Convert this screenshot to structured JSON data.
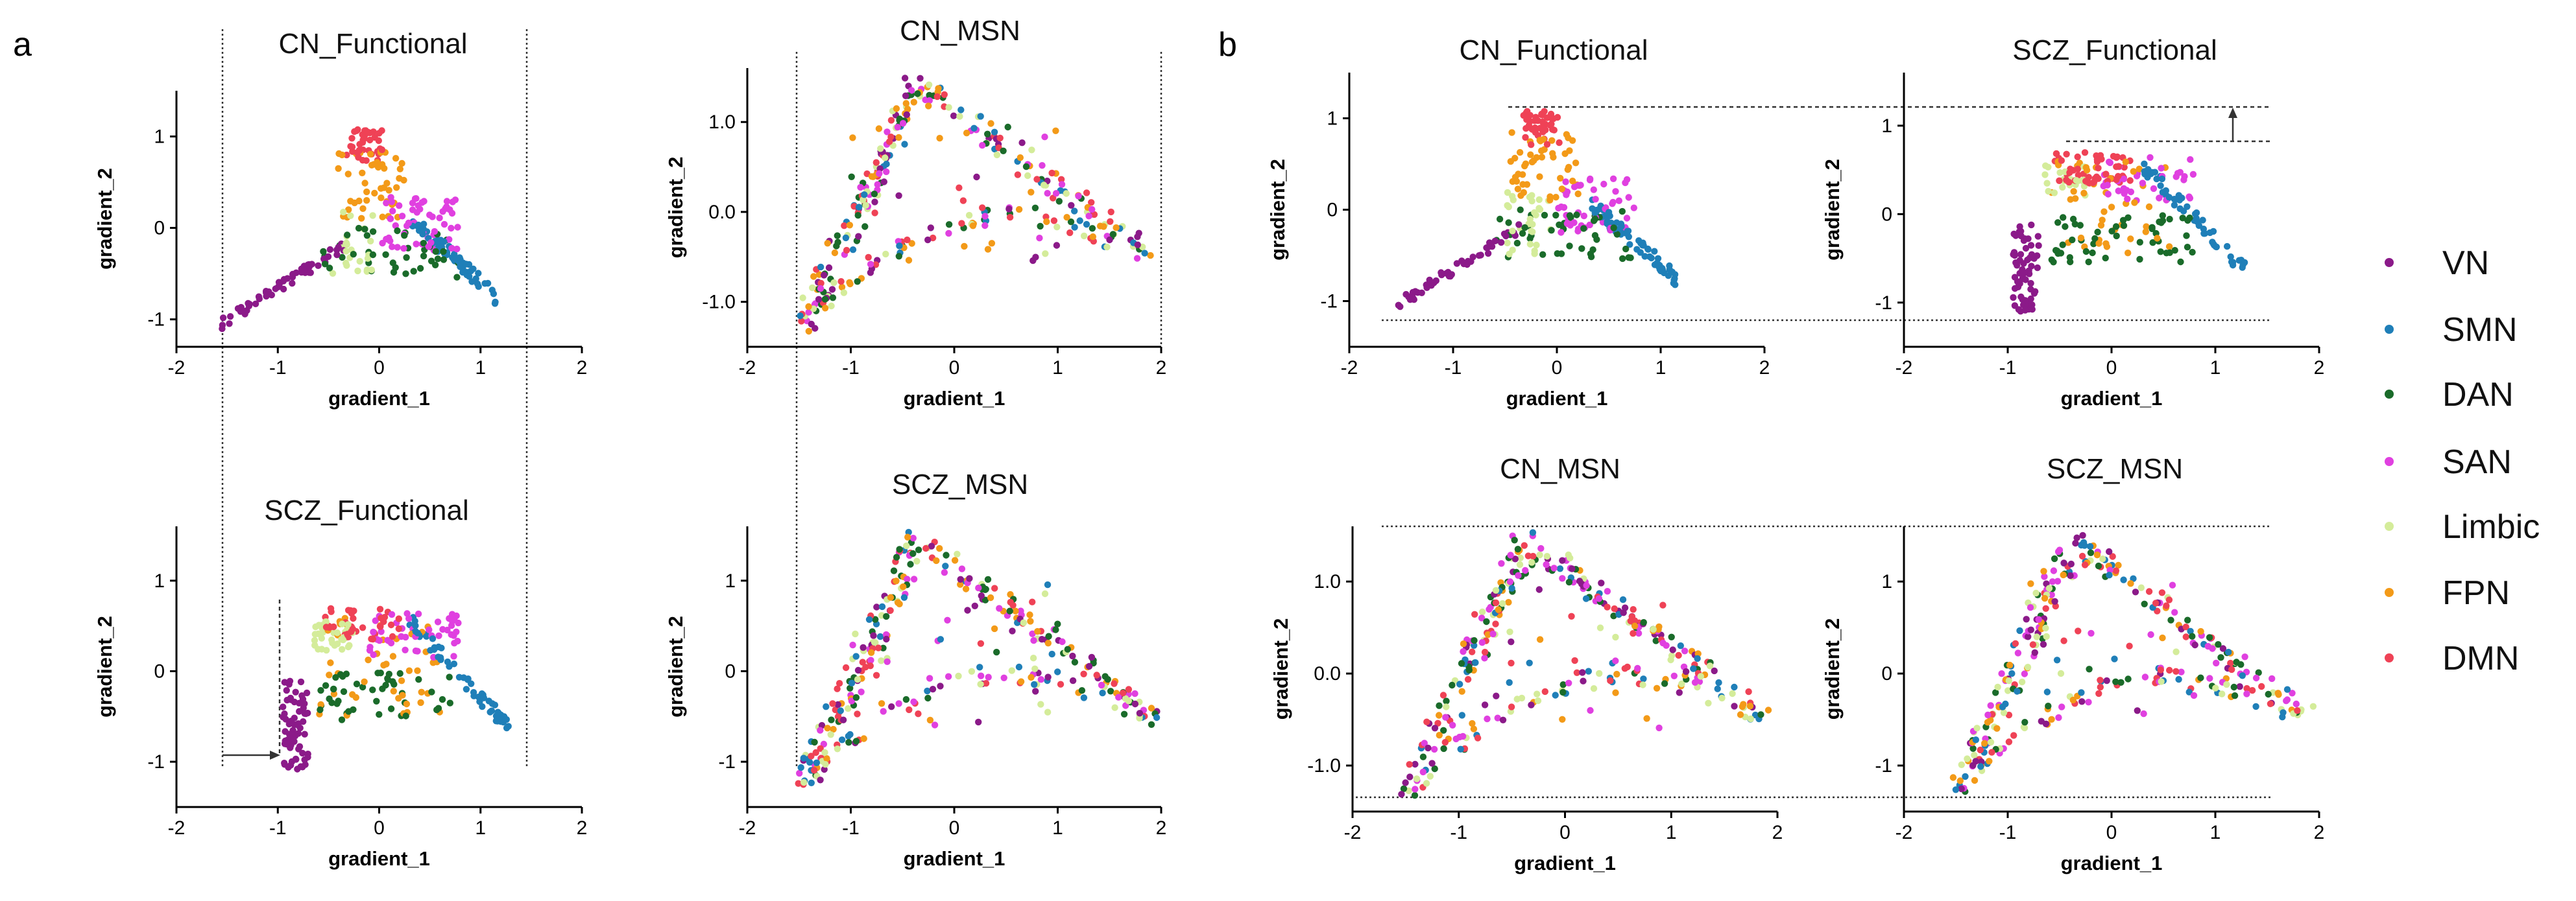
{
  "panel_labels": {
    "a": "a",
    "b": "b"
  },
  "legend": {
    "items": [
      {
        "label": "VN",
        "color": "#8B1A89"
      },
      {
        "label": "SMN",
        "color": "#1F7FB8"
      },
      {
        "label": "DAN",
        "color": "#1A6B2A"
      },
      {
        "label": "SAN",
        "color": "#E040E0"
      },
      {
        "label": "Limbic",
        "color": "#D4EC9A"
      },
      {
        "label": "FPN",
        "color": "#F39A18"
      },
      {
        "label": "DMN",
        "color": "#EF4256"
      }
    ]
  },
  "chart_data": [
    {
      "id": "a_cn_func",
      "type": "scatter",
      "title": "CN_Functional",
      "xlabel": "gradient_1",
      "ylabel": "gradient_2",
      "xlim": [
        -2,
        2
      ],
      "ylim": [
        -1.3,
        1.5
      ],
      "xticks": [
        "-2",
        "-1",
        "0",
        "1",
        "2"
      ],
      "yticks": [
        "-1",
        "0",
        "1"
      ],
      "shape": "func_cn",
      "seed": 11
    },
    {
      "id": "a_cn_msn",
      "type": "scatter",
      "title": "CN_MSN",
      "xlabel": "gradient_1",
      "ylabel": "gradient_2",
      "xlim": [
        -2,
        2
      ],
      "ylim": [
        -1.5,
        1.6
      ],
      "xticks": [
        "-2",
        "-1",
        "0",
        "1",
        "2"
      ],
      "yticks": [
        "-1.0",
        "0.0",
        "1.0"
      ],
      "shape": "msn",
      "seed": 23
    },
    {
      "id": "a_scz_func",
      "type": "scatter",
      "title": "SCZ_Functional",
      "xlabel": "gradient_1",
      "ylabel": "gradient_2",
      "xlim": [
        -2,
        2
      ],
      "ylim": [
        -1.5,
        1.6
      ],
      "xticks": [
        "-2",
        "-1",
        "0",
        "1",
        "2"
      ],
      "yticks": [
        "-1",
        "0",
        "1"
      ],
      "shape": "func_scz",
      "seed": 37
    },
    {
      "id": "a_scz_msn",
      "type": "scatter",
      "title": "SCZ_MSN",
      "xlabel": "gradient_1",
      "ylabel": "gradient_2",
      "xlim": [
        -2,
        2
      ],
      "ylim": [
        -1.5,
        1.6
      ],
      "xticks": [
        "-2",
        "-1",
        "0",
        "1",
        "2"
      ],
      "yticks": [
        "-1",
        "0",
        "1"
      ],
      "shape": "msn",
      "seed": 41
    },
    {
      "id": "b_cn_func",
      "type": "scatter",
      "title": "CN_Functional",
      "xlabel": "gradient_1",
      "ylabel": "gradient_2",
      "xlim": [
        -2,
        2
      ],
      "ylim": [
        -1.5,
        1.5
      ],
      "xticks": [
        "-2",
        "-1",
        "0",
        "1",
        "2"
      ],
      "yticks": [
        "-1",
        "0",
        "1"
      ],
      "shape": "func_cn",
      "seed": 53
    },
    {
      "id": "b_scz_func",
      "type": "scatter",
      "title": "SCZ_Functional",
      "xlabel": "gradient_1",
      "ylabel": "gradient_2",
      "xlim": [
        -2,
        2
      ],
      "ylim": [
        -1.5,
        1.6
      ],
      "xticks": [
        "-2",
        "-1",
        "0",
        "1",
        "2"
      ],
      "yticks": [
        "-1",
        "0",
        "1"
      ],
      "shape": "func_scz",
      "seed": 67
    },
    {
      "id": "b_cn_msn",
      "type": "scatter",
      "title": "CN_MSN",
      "xlabel": "gradient_1",
      "ylabel": "gradient_2",
      "xlim": [
        -2,
        2
      ],
      "ylim": [
        -1.5,
        1.6
      ],
      "xticks": [
        "-2",
        "-1",
        "0",
        "1",
        "2"
      ],
      "yticks": [
        "-1.0",
        "0.0",
        "1.0"
      ],
      "shape": "msn",
      "seed": 71
    },
    {
      "id": "b_scz_msn",
      "type": "scatter",
      "title": "SCZ_MSN",
      "xlabel": "gradient_1",
      "ylabel": "gradient_2",
      "xlim": [
        -2,
        2
      ],
      "ylim": [
        -1.5,
        1.6
      ],
      "xticks": [
        "-2",
        "-1",
        "0",
        "1",
        "2"
      ],
      "yticks": [
        "-1",
        "0",
        "1"
      ],
      "shape": "msn",
      "seed": 89
    }
  ]
}
